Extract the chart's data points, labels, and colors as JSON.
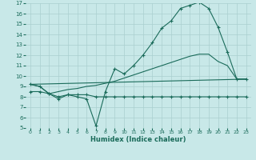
{
  "xlabel": "Humidex (Indice chaleur)",
  "bg_color": "#c8e8e8",
  "line_color": "#1a6b5a",
  "grid_color": "#aacfcf",
  "xlim": [
    -0.5,
    23.5
  ],
  "ylim": [
    5,
    17
  ],
  "yticks": [
    5,
    6,
    7,
    8,
    9,
    10,
    11,
    12,
    13,
    14,
    15,
    16,
    17
  ],
  "xticks": [
    0,
    1,
    2,
    3,
    4,
    5,
    6,
    7,
    8,
    9,
    10,
    11,
    12,
    13,
    14,
    15,
    16,
    17,
    18,
    19,
    20,
    21,
    22,
    23
  ],
  "series1_x": [
    0,
    1,
    2,
    3,
    4,
    5,
    6,
    7,
    8,
    9,
    10,
    11,
    12,
    13,
    14,
    15,
    16,
    17,
    18,
    19,
    20,
    21,
    22,
    23
  ],
  "series1_y": [
    9.2,
    9.0,
    8.3,
    7.8,
    8.2,
    8.0,
    7.8,
    5.2,
    8.5,
    10.7,
    10.2,
    11.0,
    12.0,
    13.2,
    14.6,
    15.3,
    16.5,
    16.8,
    17.1,
    16.5,
    14.7,
    12.3,
    9.7,
    9.7
  ],
  "series2_x": [
    0,
    1,
    2,
    3,
    4,
    5,
    6,
    7,
    8,
    9,
    10,
    11,
    12,
    13,
    14,
    15,
    16,
    17,
    18,
    19,
    20,
    21,
    22,
    23
  ],
  "series2_y": [
    9.2,
    9.0,
    8.3,
    8.5,
    8.7,
    8.8,
    9.0,
    9.1,
    9.3,
    9.5,
    9.8,
    10.1,
    10.4,
    10.7,
    11.0,
    11.3,
    11.6,
    11.9,
    12.1,
    12.1,
    11.4,
    11.0,
    9.7,
    9.7
  ],
  "series3_x": [
    0,
    23
  ],
  "series3_y": [
    9.2,
    9.7
  ],
  "series4_x": [
    0,
    1,
    2,
    3,
    4,
    5,
    6,
    7,
    8,
    9,
    10,
    11,
    12,
    13,
    14,
    15,
    16,
    17,
    18,
    19,
    20,
    21,
    22,
    23
  ],
  "series4_y": [
    8.5,
    8.5,
    8.3,
    8.0,
    8.2,
    8.2,
    8.2,
    8.0,
    8.0,
    8.0,
    8.0,
    8.0,
    8.0,
    8.0,
    8.0,
    8.0,
    8.0,
    8.0,
    8.0,
    8.0,
    8.0,
    8.0,
    8.0,
    8.0
  ]
}
